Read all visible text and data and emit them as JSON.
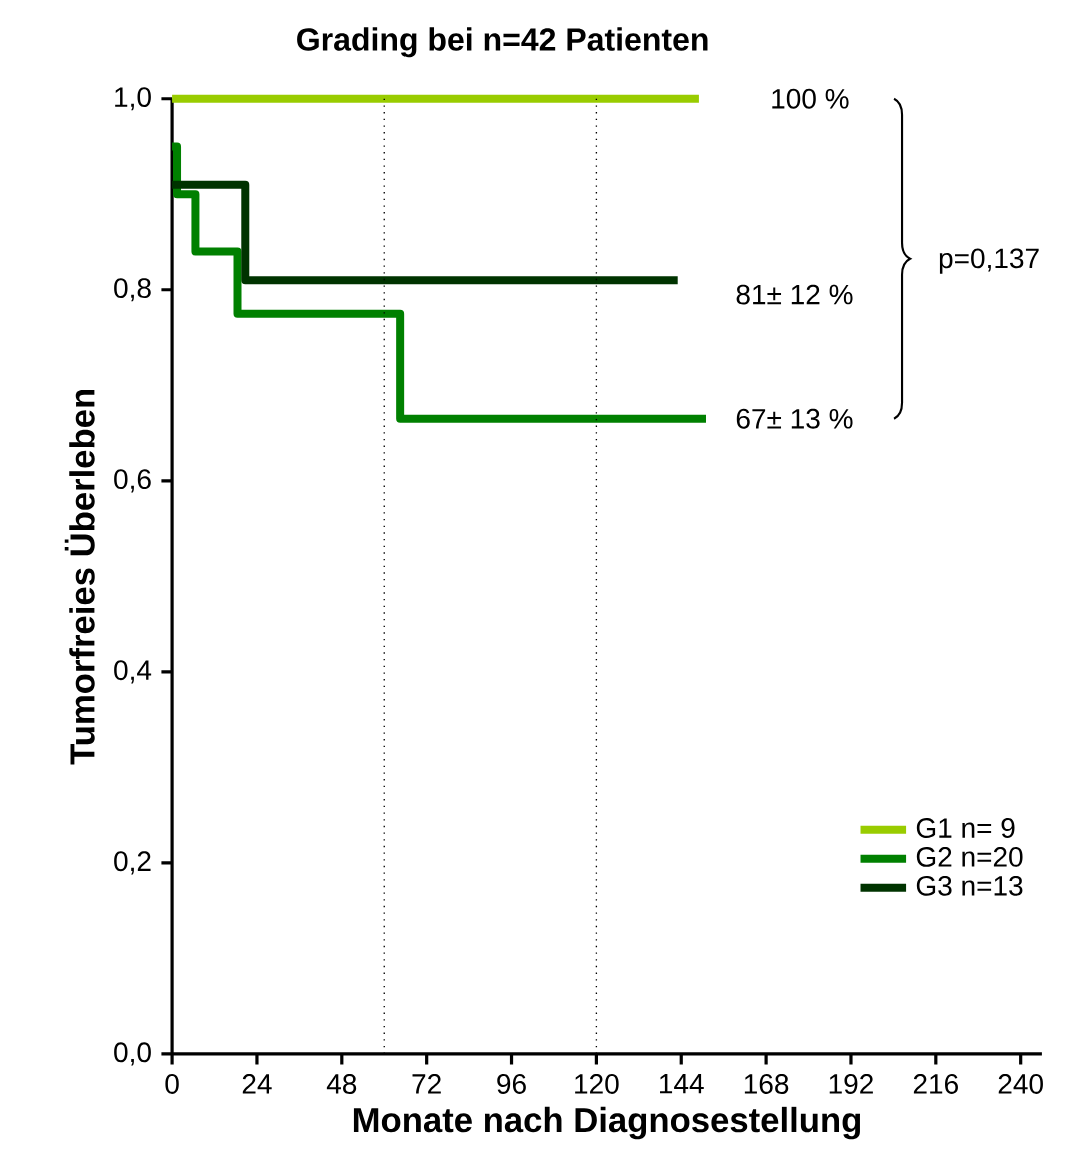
{
  "chart_data": {
    "type": "step",
    "title": "Grading bei n=42 Patienten",
    "xlabel": "Monate nach Diagnosestellung",
    "ylabel": "Tumorfreies Überleben",
    "xlim": [
      0,
      246
    ],
    "xticks": [
      0,
      24,
      48,
      72,
      96,
      120,
      144,
      168,
      192,
      216,
      240
    ],
    "ylim": [
      0,
      1.0
    ],
    "yticks": [
      {
        "value": 0,
        "label": "0,0"
      },
      {
        "value": 0.2,
        "label": "0,2"
      },
      {
        "value": 0.4,
        "label": "0,4"
      },
      {
        "value": 0.6,
        "label": "0,6"
      },
      {
        "value": 0.8,
        "label": "0,8"
      },
      {
        "value": 1.0,
        "label": "1,0"
      }
    ],
    "series": [
      {
        "name": "G1 n=  9",
        "color": "#99cc00",
        "x": [
          0,
          149
        ],
        "values": [
          1.0,
          1.0
        ]
      },
      {
        "name": "G2 n=20",
        "color": "#008000",
        "x": [
          0,
          1.4,
          6.6,
          18.5,
          64.5,
          151
        ],
        "values": [
          0.95,
          0.9,
          0.84,
          0.775,
          0.665,
          0.665
        ]
      },
      {
        "name": "G3 n=13",
        "color": "#003300",
        "x": [
          0,
          20.7,
          143
        ],
        "values": [
          0.91,
          0.81,
          0.81
        ]
      }
    ],
    "ref_lines": [
      {
        "axis": "x",
        "value": 60,
        "line_style": "dotted"
      },
      {
        "axis": "x",
        "value": 120,
        "line_style": "dotted"
      }
    ],
    "annotations": [
      "100 %",
      "81± 12 %",
      "67± 13 %",
      "p=0,137"
    ],
    "legend": "bottom right",
    "grid": false,
    "marker": "none",
    "line_style": "solid"
  }
}
